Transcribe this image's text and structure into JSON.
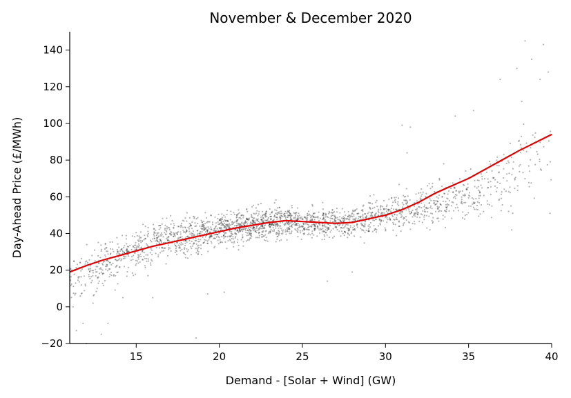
{
  "chart_data": {
    "type": "scatter",
    "title": "November & December 2020",
    "xlabel": "Demand - [Solar + Wind] (GW)",
    "ylabel": "Day-Ahead Price (£/MWh)",
    "xlim": [
      11,
      40
    ],
    "ylim": [
      -20,
      150
    ],
    "xticks": [
      "15",
      "20",
      "25",
      "30",
      "35",
      "40"
    ],
    "yticks": [
      "−20",
      "0",
      "20",
      "40",
      "60",
      "80",
      "100",
      "120",
      "140"
    ],
    "grid": false,
    "scatter_color": "#000000",
    "trend_color": "#e00000",
    "trend_line": {
      "x": [
        11,
        12,
        13,
        14,
        15,
        16,
        17,
        18,
        19,
        20,
        21,
        22,
        23,
        24,
        25,
        26,
        27,
        28,
        29,
        30,
        31,
        32,
        33,
        34,
        35,
        36,
        37,
        38,
        39,
        40
      ],
      "y": [
        19,
        22.5,
        25.5,
        28,
        30.5,
        33,
        35,
        37,
        39,
        41,
        43,
        44.5,
        46,
        47,
        46.5,
        46,
        45.5,
        46,
        48,
        50,
        53,
        57,
        62,
        66,
        70,
        75,
        80,
        85,
        89.5,
        94
      ]
    },
    "scatter_density": [
      {
        "x": 11.5,
        "y_mean": 17,
        "y_spread": 14,
        "count": 45
      },
      {
        "x": 12.5,
        "y_mean": 20,
        "y_spread": 14,
        "count": 60
      },
      {
        "x": 13.5,
        "y_mean": 25,
        "y_spread": 12,
        "count": 70
      },
      {
        "x": 14.5,
        "y_mean": 29,
        "y_spread": 11,
        "count": 70
      },
      {
        "x": 15.5,
        "y_mean": 32,
        "y_spread": 11,
        "count": 80
      },
      {
        "x": 16.5,
        "y_mean": 36,
        "y_spread": 10,
        "count": 90
      },
      {
        "x": 17.5,
        "y_mean": 38,
        "y_spread": 10,
        "count": 95
      },
      {
        "x": 18.5,
        "y_mean": 39,
        "y_spread": 10,
        "count": 100
      },
      {
        "x": 19.5,
        "y_mean": 41,
        "y_spread": 9,
        "count": 110
      },
      {
        "x": 20.5,
        "y_mean": 43,
        "y_spread": 9,
        "count": 130
      },
      {
        "x": 21.5,
        "y_mean": 44,
        "y_spread": 8,
        "count": 140
      },
      {
        "x": 22.5,
        "y_mean": 45,
        "y_spread": 8,
        "count": 140
      },
      {
        "x": 23.5,
        "y_mean": 46,
        "y_spread": 8,
        "count": 130
      },
      {
        "x": 24.5,
        "y_mean": 46,
        "y_spread": 8,
        "count": 120
      },
      {
        "x": 25.5,
        "y_mean": 46,
        "y_spread": 8,
        "count": 110
      },
      {
        "x": 26.5,
        "y_mean": 46,
        "y_spread": 8,
        "count": 100
      },
      {
        "x": 27.5,
        "y_mean": 46,
        "y_spread": 8,
        "count": 95
      },
      {
        "x": 28.5,
        "y_mean": 47,
        "y_spread": 8,
        "count": 90
      },
      {
        "x": 29.5,
        "y_mean": 49,
        "y_spread": 9,
        "count": 85
      },
      {
        "x": 30.5,
        "y_mean": 51,
        "y_spread": 9,
        "count": 80
      },
      {
        "x": 31.5,
        "y_mean": 53,
        "y_spread": 9,
        "count": 70
      },
      {
        "x": 32.5,
        "y_mean": 55,
        "y_spread": 10,
        "count": 65
      },
      {
        "x": 33.5,
        "y_mean": 57,
        "y_spread": 11,
        "count": 60
      },
      {
        "x": 34.5,
        "y_mean": 60,
        "y_spread": 12,
        "count": 55
      },
      {
        "x": 35.5,
        "y_mean": 62,
        "y_spread": 13,
        "count": 45
      },
      {
        "x": 36.5,
        "y_mean": 66,
        "y_spread": 15,
        "count": 38
      },
      {
        "x": 37.5,
        "y_mean": 72,
        "y_spread": 18,
        "count": 30
      },
      {
        "x": 38.5,
        "y_mean": 80,
        "y_spread": 22,
        "count": 25
      },
      {
        "x": 39.5,
        "y_mean": 88,
        "y_spread": 22,
        "count": 15
      }
    ],
    "scatter_points": [
      {
        "x": 38.4,
        "y": 145
      },
      {
        "x": 39.5,
        "y": 143
      },
      {
        "x": 38.8,
        "y": 135
      },
      {
        "x": 39.8,
        "y": 128
      },
      {
        "x": 39.3,
        "y": 124
      },
      {
        "x": 37.9,
        "y": 130
      },
      {
        "x": 31.0,
        "y": 99
      },
      {
        "x": 31.5,
        "y": 98
      },
      {
        "x": 35.3,
        "y": 107
      },
      {
        "x": 34.2,
        "y": 104
      },
      {
        "x": 18.6,
        "y": -17
      },
      {
        "x": 12.0,
        "y": -20
      },
      {
        "x": 11.4,
        "y": -13
      },
      {
        "x": 12.9,
        "y": -15
      },
      {
        "x": 11.8,
        "y": -9
      },
      {
        "x": 13.3,
        "y": -9
      },
      {
        "x": 11.2,
        "y": 0
      },
      {
        "x": 12.4,
        "y": 2
      },
      {
        "x": 14.2,
        "y": 5
      },
      {
        "x": 16.0,
        "y": 5
      },
      {
        "x": 19.3,
        "y": 7
      },
      {
        "x": 20.3,
        "y": 8
      },
      {
        "x": 26.5,
        "y": 14
      },
      {
        "x": 28.0,
        "y": 19
      },
      {
        "x": 31.3,
        "y": 84
      },
      {
        "x": 39.9,
        "y": 51
      },
      {
        "x": 33.5,
        "y": 78
      },
      {
        "x": 37.6,
        "y": 42
      },
      {
        "x": 36.9,
        "y": 124
      },
      {
        "x": 38.2,
        "y": 112
      }
    ]
  }
}
